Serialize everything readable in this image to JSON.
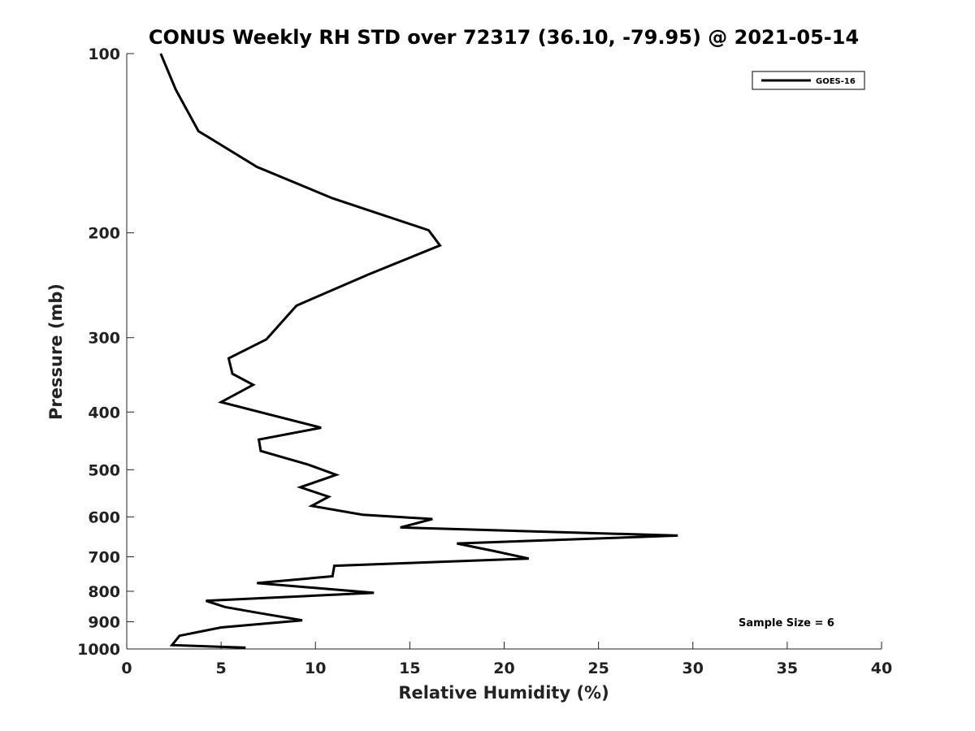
{
  "chart_data": {
    "type": "line",
    "title": "CONUS Weekly RH STD over 72317 (36.10, -79.95) @ 2021-05-14",
    "xlabel": "Relative Humidity (%)",
    "ylabel": "Pressure (mb)",
    "xlim": [
      0,
      40
    ],
    "ylim": [
      100,
      1000
    ],
    "yscale": "log",
    "y_reversed": true,
    "xticks": [
      0,
      5,
      10,
      15,
      20,
      25,
      30,
      35,
      40
    ],
    "yticks": [
      100,
      200,
      300,
      400,
      500,
      600,
      700,
      800,
      900,
      1000
    ],
    "grid": false,
    "legend_position": "top-right",
    "annotation": "Sample Size = 6",
    "line_color": "#000000",
    "series": [
      {
        "name": "GOES-16",
        "x": [
          1.8,
          2.6,
          3.8,
          6.9,
          10.9,
          16.0,
          16.6,
          12.8,
          9.0,
          7.4,
          5.4,
          5.6,
          6.7,
          5.0,
          10.3,
          7.0,
          7.1,
          9.6,
          11.1,
          9.2,
          10.7,
          9.8,
          12.5,
          16.2,
          14.5,
          29.2,
          17.5,
          19.5,
          21.3,
          11.0,
          10.9,
          6.9,
          13.1,
          4.2,
          5.2,
          7.0,
          9.3,
          5.0,
          2.8,
          2.4,
          6.3
        ],
        "y": [
          100,
          115,
          135,
          155,
          175,
          198,
          210,
          235,
          265,
          302,
          325,
          345,
          360,
          385,
          425,
          445,
          465,
          490,
          510,
          535,
          555,
          575,
          595,
          605,
          625,
          645,
          665,
          685,
          705,
          725,
          755,
          775,
          805,
          830,
          850,
          870,
          895,
          920,
          950,
          985,
          995
        ]
      }
    ]
  }
}
